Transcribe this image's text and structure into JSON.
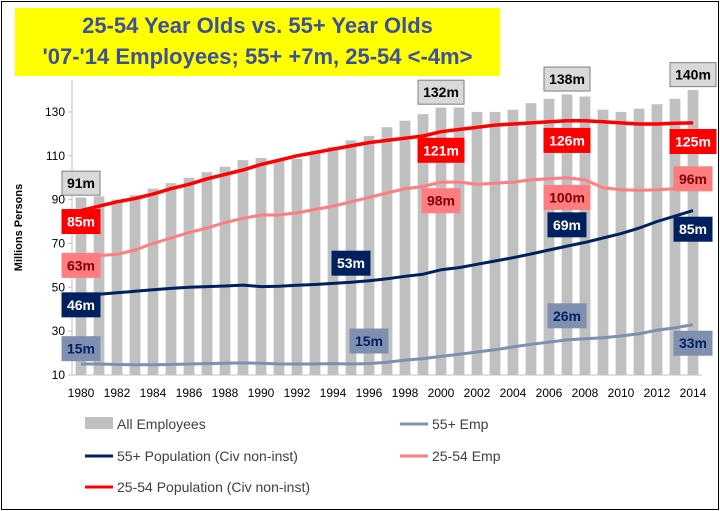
{
  "chart_data": {
    "type": "bar",
    "title_line1": "25-54 Year Olds vs. 55+ Year Olds",
    "title_line2": "'07-'14 Employees; 55+ +7m, 25-54 <-4m>",
    "ylabel": "Millions Persons",
    "ylim": [
      10,
      140
    ],
    "yticks": [
      10,
      30,
      50,
      70,
      90,
      110,
      130
    ],
    "x": [
      1980,
      1981,
      1982,
      1983,
      1984,
      1985,
      1986,
      1987,
      1988,
      1989,
      1990,
      1991,
      1992,
      1993,
      1994,
      1995,
      1996,
      1997,
      1998,
      1999,
      2000,
      2001,
      2002,
      2003,
      2004,
      2005,
      2006,
      2007,
      2008,
      2009,
      2010,
      2011,
      2012,
      2013,
      2014
    ],
    "xticks": [
      1980,
      1982,
      1984,
      1986,
      1988,
      1990,
      1992,
      1994,
      1996,
      1998,
      2000,
      2002,
      2004,
      2006,
      2008,
      2010,
      2012,
      2014
    ],
    "series": [
      {
        "name": "All Employees",
        "type": "bar",
        "color": "#c0c0c0",
        "values": [
          91,
          91.5,
          90,
          92,
          95,
          97.5,
          100,
          102.5,
          105,
          108,
          109,
          108,
          108.5,
          111,
          114,
          117,
          119,
          123,
          126,
          129,
          132,
          132,
          130,
          130,
          131,
          134,
          136,
          138,
          137,
          131,
          130,
          131.5,
          133.5,
          136,
          140
        ]
      },
      {
        "name": "25-54 Population (Civ non-inst)",
        "type": "line",
        "color": "#ff0000",
        "values": [
          85,
          87,
          89,
          90.5,
          92.5,
          95,
          97,
          99.5,
          101.5,
          103.5,
          106,
          108,
          110,
          111.5,
          113,
          114.5,
          116,
          117,
          118,
          119,
          121,
          122,
          123,
          124,
          124.5,
          125,
          125.5,
          126,
          126,
          125.5,
          125,
          124.5,
          124.5,
          124.8,
          125
        ]
      },
      {
        "name": "25-54 Emp",
        "type": "line",
        "color": "#ff7c80",
        "values": [
          63,
          64.5,
          65,
          67,
          70,
          72.5,
          75,
          77,
          79.5,
          81.5,
          83,
          83,
          84,
          85.5,
          87,
          89,
          91,
          93,
          95,
          96,
          98,
          98,
          97,
          97.5,
          98,
          99,
          99.5,
          100,
          99,
          95.5,
          94.5,
          94.2,
          94.5,
          95,
          96
        ]
      },
      {
        "name": "55+ Population (Civ non-inst)",
        "type": "line",
        "color": "#002060",
        "values": [
          46,
          46.8,
          47.5,
          48.2,
          48.9,
          49.5,
          50,
          50.3,
          50.6,
          51,
          50.3,
          50.5,
          50.9,
          51.3,
          51.8,
          52.3,
          53,
          53.9,
          55,
          56,
          58,
          59,
          60.5,
          62,
          63.5,
          65.2,
          67,
          68.8,
          70.5,
          72.5,
          74.5,
          77,
          80,
          82.5,
          85
        ]
      },
      {
        "name": "55+ Emp",
        "type": "line",
        "color": "#7f8fb0",
        "values": [
          15,
          15,
          14.8,
          14.7,
          14.7,
          14.8,
          15,
          15.2,
          15.4,
          15.5,
          15.4,
          15,
          15,
          15,
          15.2,
          15,
          15.2,
          15.8,
          16.8,
          17.5,
          18.5,
          19.5,
          20.5,
          21.5,
          22.8,
          24,
          25,
          26,
          26.5,
          27,
          27.8,
          28.8,
          30.5,
          31.5,
          33
        ]
      }
    ],
    "annotations": [
      {
        "text": "91m",
        "year": 1980,
        "value": 97.5,
        "style": "all"
      },
      {
        "text": "132m",
        "year": 2000,
        "value": 139,
        "style": "all"
      },
      {
        "text": "138m",
        "year": 2007,
        "value": 145,
        "style": "all"
      },
      {
        "text": "140m",
        "year": 2014,
        "value": 147,
        "style": "all"
      },
      {
        "text": "85m",
        "year": 1980,
        "value": 80,
        "style": "pop2554"
      },
      {
        "text": "121m",
        "year": 2000,
        "value": 112.5,
        "style": "pop2554"
      },
      {
        "text": "126m",
        "year": 2007,
        "value": 117,
        "style": "pop2554"
      },
      {
        "text": "125m",
        "year": 2014,
        "value": 116.5,
        "style": "pop2554"
      },
      {
        "text": "63m",
        "year": 1980,
        "value": 60,
        "style": "emp2554"
      },
      {
        "text": "98m",
        "year": 2000,
        "value": 89.5,
        "style": "emp2554"
      },
      {
        "text": "100m",
        "year": 2007,
        "value": 91,
        "style": "emp2554"
      },
      {
        "text": "96m",
        "year": 2014,
        "value": 99.5,
        "style": "emp2554"
      },
      {
        "text": "46m",
        "year": 1980,
        "value": 42,
        "style": "pop55"
      },
      {
        "text": "53m",
        "year": 1995,
        "value": 61,
        "style": "pop55"
      },
      {
        "text": "69m",
        "year": 2007,
        "value": 78.5,
        "style": "pop55"
      },
      {
        "text": "85m",
        "year": 2014,
        "value": 76.5,
        "style": "pop55"
      },
      {
        "text": "15m",
        "year": 1980,
        "value": 22,
        "style": "emp55"
      },
      {
        "text": "15m",
        "year": 1996,
        "value": 25.5,
        "style": "emp55"
      },
      {
        "text": "26m",
        "year": 2007,
        "value": 37,
        "style": "emp55"
      },
      {
        "text": "33m",
        "year": 2014,
        "value": 24.5,
        "style": "emp55"
      }
    ],
    "annotation_styles": {
      "all": {
        "fill": "#d9d9d9",
        "stroke": "#7f7f7f",
        "text": "#000000"
      },
      "pop2554": {
        "fill": "#ff0000",
        "stroke": "#ff0000",
        "text": "#ffffff"
      },
      "emp2554": {
        "fill": "#ff7c80",
        "stroke": "#ff7c80",
        "text": "#7f0000"
      },
      "pop55": {
        "fill": "#002060",
        "stroke": "#002060",
        "text": "#ffffff"
      },
      "emp55": {
        "fill": "#7f8fb0",
        "stroke": "#7f8fb0",
        "text": "#002060"
      }
    },
    "legend": {
      "placement": "bottom",
      "items": [
        {
          "name": "All Employees",
          "kind": "bar",
          "color": "#c0c0c0"
        },
        {
          "name": "55+ Emp",
          "kind": "line",
          "color": "#7f8fb0"
        },
        {
          "name": "55+ Population (Civ non-inst)",
          "kind": "line",
          "color": "#002060"
        },
        {
          "name": "25-54 Emp",
          "kind": "line",
          "color": "#ff7c80"
        },
        {
          "name": "25-54 Population (Civ non-inst)",
          "kind": "line",
          "color": "#ff0000"
        }
      ]
    },
    "grid": false
  }
}
